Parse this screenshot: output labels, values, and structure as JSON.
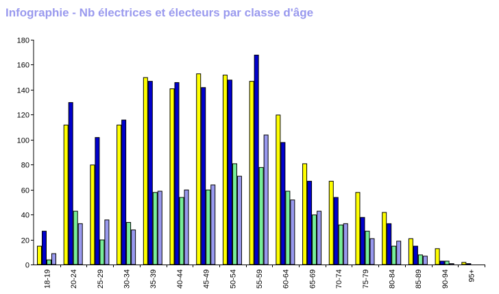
{
  "title": "Infographie - Nb électrices et électeurs par classe d'âge",
  "colors": {
    "title": "#9999ee",
    "series": [
      "#ffff00",
      "#0000cc",
      "#77ee99",
      "#9999ee"
    ],
    "outline": "#000000",
    "background": "#ffffff"
  },
  "chart_data": {
    "type": "bar",
    "title": "Infographie - Nb électrices et électeurs par classe d'âge",
    "xlabel": "",
    "ylabel": "",
    "ylim": [
      0,
      180
    ],
    "yticks": [
      0,
      20,
      40,
      60,
      80,
      100,
      120,
      140,
      160,
      180
    ],
    "grid": false,
    "legend": "none",
    "categories": [
      "18-19",
      "20-24",
      "25-29",
      "30-34",
      "35-39",
      "40-44",
      "45-49",
      "50-54",
      "55-59",
      "60-64",
      "65-69",
      "70-74",
      "75-79",
      "80-84",
      "85-89",
      "90-94",
      "95+"
    ],
    "series": [
      {
        "values": [
          15,
          112,
          80,
          112,
          150,
          141,
          153,
          152,
          147,
          120,
          81,
          67,
          58,
          42,
          21,
          13,
          2
        ]
      },
      {
        "values": [
          27,
          130,
          102,
          116,
          147,
          146,
          142,
          148,
          168,
          98,
          67,
          54,
          38,
          33,
          15,
          3,
          1
        ]
      },
      {
        "values": [
          4,
          43,
          20,
          34,
          58,
          54,
          60,
          81,
          78,
          59,
          40,
          32,
          27,
          15,
          8,
          3,
          0
        ]
      },
      {
        "values": [
          9,
          33,
          36,
          28,
          59,
          60,
          64,
          71,
          104,
          52,
          43,
          33,
          21,
          19,
          7,
          1,
          0
        ]
      }
    ]
  }
}
